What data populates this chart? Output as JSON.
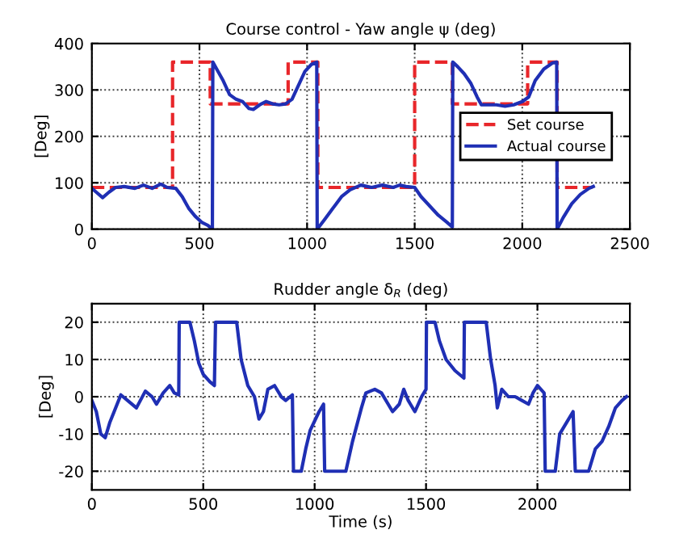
{
  "chart_data": [
    {
      "type": "line",
      "title": "Course control - Yaw angle ψ (deg)",
      "ylabel": "[Deg]",
      "xlim": [
        0,
        2500
      ],
      "ylim": [
        0,
        400
      ],
      "xticks": [
        0,
        500,
        1000,
        1500,
        2000,
        2500
      ],
      "yticks": [
        0,
        100,
        200,
        300,
        400
      ],
      "grid": true,
      "legend": "center right",
      "series": [
        {
          "name": "Set course",
          "color": "#e8262a",
          "line_style": "dashed",
          "x": [
            0,
            375,
            375,
            550,
            550,
            912,
            912,
            1050,
            1050,
            1500,
            1500,
            1675,
            1675,
            2025,
            2025,
            2162,
            2162,
            2325
          ],
          "values": [
            90,
            90,
            360,
            360,
            270,
            270,
            360,
            360,
            90,
            90,
            360,
            360,
            270,
            270,
            360,
            360,
            90,
            90
          ]
        },
        {
          "name": "Actual course",
          "color": "#1f2fb4",
          "line_style": "solid",
          "x": [
            0,
            20,
            50,
            80,
            110,
            150,
            200,
            240,
            280,
            320,
            350,
            390,
            420,
            450,
            480,
            510,
            540,
            560,
            562,
            580,
            610,
            640,
            670,
            700,
            730,
            750,
            780,
            810,
            840,
            870,
            900,
            930,
            960,
            990,
            1020,
            1045,
            1047,
            1080,
            1120,
            1160,
            1200,
            1250,
            1300,
            1350,
            1400,
            1430,
            1460,
            1500,
            1530,
            1570,
            1610,
            1650,
            1675,
            1677,
            1700,
            1730,
            1760,
            1790,
            1810,
            1840,
            1880,
            1920,
            1960,
            2000,
            2030,
            2060,
            2100,
            2140,
            2160,
            2162,
            2190,
            2230,
            2270,
            2310,
            2330
          ],
          "values": [
            88,
            80,
            68,
            80,
            90,
            92,
            88,
            95,
            88,
            97,
            90,
            88,
            70,
            45,
            28,
            15,
            8,
            0,
            360,
            345,
            320,
            290,
            280,
            275,
            260,
            258,
            268,
            275,
            270,
            268,
            270,
            280,
            310,
            340,
            355,
            360,
            0,
            20,
            45,
            70,
            85,
            95,
            90,
            95,
            90,
            95,
            92,
            90,
            70,
            50,
            30,
            15,
            5,
            360,
            350,
            335,
            315,
            285,
            268,
            268,
            268,
            265,
            268,
            275,
            285,
            320,
            345,
            358,
            360,
            0,
            25,
            55,
            75,
            88,
            92
          ]
        }
      ]
    },
    {
      "type": "line",
      "title": "Rudder angle δ$_{R}$ (deg)",
      "xlabel": "Time (s)",
      "ylabel": "[Deg]",
      "xlim": [
        0,
        2415
      ],
      "ylim": [
        -25,
        25
      ],
      "xticks": [
        0,
        500,
        1000,
        1500,
        2000
      ],
      "yticks": [
        -20,
        -10,
        0,
        10,
        20
      ],
      "grid": true,
      "series": [
        {
          "color": "#1f2fb4",
          "line_style": "solid",
          "x": [
            0,
            20,
            40,
            60,
            80,
            100,
            130,
            160,
            200,
            240,
            270,
            290,
            320,
            350,
            370,
            390,
            392,
            440,
            460,
            480,
            500,
            530,
            550,
            555,
            650,
            670,
            700,
            730,
            750,
            770,
            790,
            820,
            850,
            870,
            900,
            905,
            940,
            960,
            980,
            1020,
            1040,
            1045,
            1140,
            1170,
            1210,
            1230,
            1270,
            1300,
            1330,
            1350,
            1380,
            1400,
            1420,
            1450,
            1480,
            1500,
            1502,
            1540,
            1560,
            1590,
            1630,
            1670,
            1672,
            1770,
            1790,
            1810,
            1820,
            1840,
            1870,
            1900,
            1930,
            1960,
            1980,
            2000,
            2030,
            2035,
            2080,
            2100,
            2130,
            2160,
            2170,
            2230,
            2260,
            2290,
            2320,
            2350,
            2380,
            2400
          ],
          "values": [
            -1,
            -4,
            -10,
            -11,
            -7,
            -4,
            0.5,
            -1,
            -3,
            1.5,
            0,
            -2,
            1,
            3,
            1,
            0.5,
            20,
            20,
            15,
            9,
            6,
            4,
            3,
            20,
            20,
            10,
            3,
            0,
            -6,
            -4,
            2,
            3,
            0,
            -1,
            0.5,
            -20,
            -20,
            -14,
            -9,
            -4,
            -2,
            -20,
            -20,
            -12,
            -3,
            1,
            2,
            1,
            -2,
            -4,
            -2,
            2,
            -1,
            -4,
            0,
            2,
            20,
            20,
            15,
            10,
            7,
            5,
            20,
            20,
            10,
            3,
            -3,
            2,
            0,
            0,
            -1,
            -2,
            1,
            3,
            1,
            -20,
            -20,
            -10,
            -7,
            -4,
            -20,
            -20,
            -14,
            -12,
            -8,
            -3,
            -1,
            0
          ]
        }
      ]
    }
  ]
}
